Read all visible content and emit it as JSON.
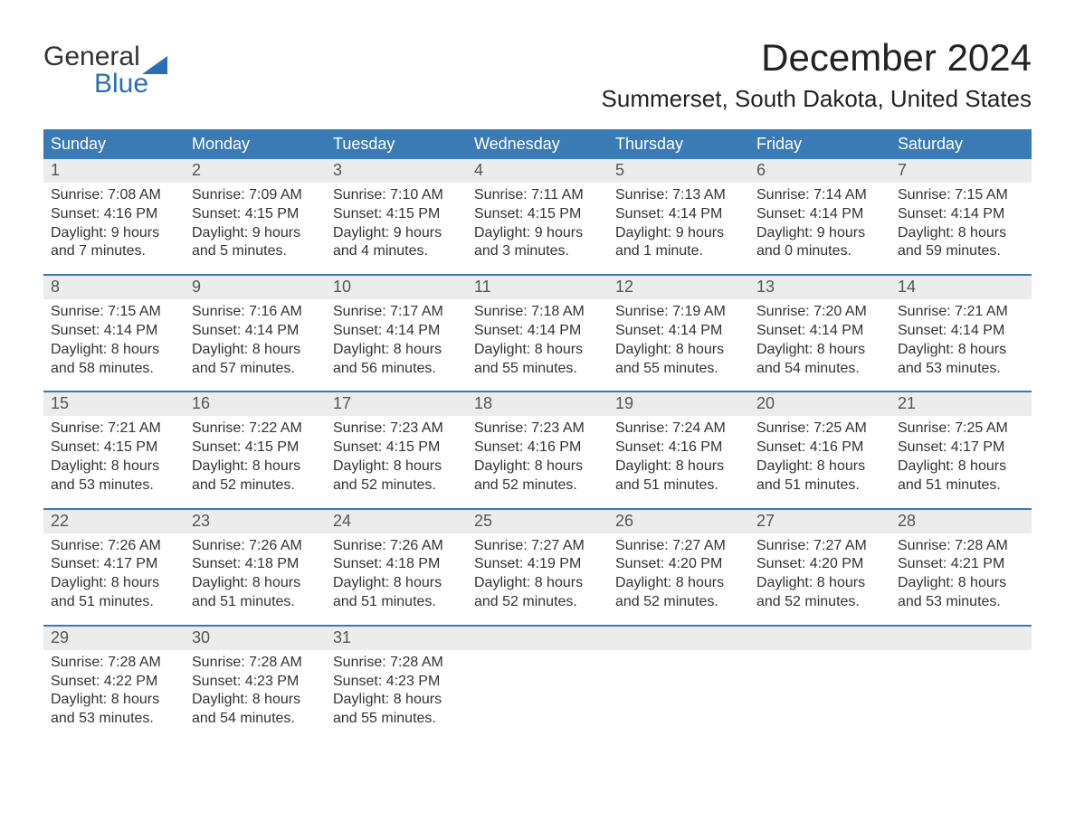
{
  "logo": {
    "word1": "General",
    "word2": "Blue"
  },
  "title": "December 2024",
  "location": "Summerset, South Dakota, United States",
  "colors": {
    "header_bg": "#3a7ab5",
    "header_text": "#ffffff",
    "daynum_bg": "#ececec",
    "daynum_text": "#555555",
    "body_text": "#333333",
    "week_border": "#3a7ab5",
    "logo_accent": "#2a6fb5"
  },
  "typography": {
    "title_fontsize": 42,
    "location_fontsize": 26,
    "header_fontsize": 18,
    "body_fontsize": 16
  },
  "day_headers": [
    "Sunday",
    "Monday",
    "Tuesday",
    "Wednesday",
    "Thursday",
    "Friday",
    "Saturday"
  ],
  "weeks": [
    [
      {
        "n": "1",
        "sr": "Sunrise: 7:08 AM",
        "ss": "Sunset: 4:16 PM",
        "d1": "Daylight: 9 hours",
        "d2": "and 7 minutes."
      },
      {
        "n": "2",
        "sr": "Sunrise: 7:09 AM",
        "ss": "Sunset: 4:15 PM",
        "d1": "Daylight: 9 hours",
        "d2": "and 5 minutes."
      },
      {
        "n": "3",
        "sr": "Sunrise: 7:10 AM",
        "ss": "Sunset: 4:15 PM",
        "d1": "Daylight: 9 hours",
        "d2": "and 4 minutes."
      },
      {
        "n": "4",
        "sr": "Sunrise: 7:11 AM",
        "ss": "Sunset: 4:15 PM",
        "d1": "Daylight: 9 hours",
        "d2": "and 3 minutes."
      },
      {
        "n": "5",
        "sr": "Sunrise: 7:13 AM",
        "ss": "Sunset: 4:14 PM",
        "d1": "Daylight: 9 hours",
        "d2": "and 1 minute."
      },
      {
        "n": "6",
        "sr": "Sunrise: 7:14 AM",
        "ss": "Sunset: 4:14 PM",
        "d1": "Daylight: 9 hours",
        "d2": "and 0 minutes."
      },
      {
        "n": "7",
        "sr": "Sunrise: 7:15 AM",
        "ss": "Sunset: 4:14 PM",
        "d1": "Daylight: 8 hours",
        "d2": "and 59 minutes."
      }
    ],
    [
      {
        "n": "8",
        "sr": "Sunrise: 7:15 AM",
        "ss": "Sunset: 4:14 PM",
        "d1": "Daylight: 8 hours",
        "d2": "and 58 minutes."
      },
      {
        "n": "9",
        "sr": "Sunrise: 7:16 AM",
        "ss": "Sunset: 4:14 PM",
        "d1": "Daylight: 8 hours",
        "d2": "and 57 minutes."
      },
      {
        "n": "10",
        "sr": "Sunrise: 7:17 AM",
        "ss": "Sunset: 4:14 PM",
        "d1": "Daylight: 8 hours",
        "d2": "and 56 minutes."
      },
      {
        "n": "11",
        "sr": "Sunrise: 7:18 AM",
        "ss": "Sunset: 4:14 PM",
        "d1": "Daylight: 8 hours",
        "d2": "and 55 minutes."
      },
      {
        "n": "12",
        "sr": "Sunrise: 7:19 AM",
        "ss": "Sunset: 4:14 PM",
        "d1": "Daylight: 8 hours",
        "d2": "and 55 minutes."
      },
      {
        "n": "13",
        "sr": "Sunrise: 7:20 AM",
        "ss": "Sunset: 4:14 PM",
        "d1": "Daylight: 8 hours",
        "d2": "and 54 minutes."
      },
      {
        "n": "14",
        "sr": "Sunrise: 7:21 AM",
        "ss": "Sunset: 4:14 PM",
        "d1": "Daylight: 8 hours",
        "d2": "and 53 minutes."
      }
    ],
    [
      {
        "n": "15",
        "sr": "Sunrise: 7:21 AM",
        "ss": "Sunset: 4:15 PM",
        "d1": "Daylight: 8 hours",
        "d2": "and 53 minutes."
      },
      {
        "n": "16",
        "sr": "Sunrise: 7:22 AM",
        "ss": "Sunset: 4:15 PM",
        "d1": "Daylight: 8 hours",
        "d2": "and 52 minutes."
      },
      {
        "n": "17",
        "sr": "Sunrise: 7:23 AM",
        "ss": "Sunset: 4:15 PM",
        "d1": "Daylight: 8 hours",
        "d2": "and 52 minutes."
      },
      {
        "n": "18",
        "sr": "Sunrise: 7:23 AM",
        "ss": "Sunset: 4:16 PM",
        "d1": "Daylight: 8 hours",
        "d2": "and 52 minutes."
      },
      {
        "n": "19",
        "sr": "Sunrise: 7:24 AM",
        "ss": "Sunset: 4:16 PM",
        "d1": "Daylight: 8 hours",
        "d2": "and 51 minutes."
      },
      {
        "n": "20",
        "sr": "Sunrise: 7:25 AM",
        "ss": "Sunset: 4:16 PM",
        "d1": "Daylight: 8 hours",
        "d2": "and 51 minutes."
      },
      {
        "n": "21",
        "sr": "Sunrise: 7:25 AM",
        "ss": "Sunset: 4:17 PM",
        "d1": "Daylight: 8 hours",
        "d2": "and 51 minutes."
      }
    ],
    [
      {
        "n": "22",
        "sr": "Sunrise: 7:26 AM",
        "ss": "Sunset: 4:17 PM",
        "d1": "Daylight: 8 hours",
        "d2": "and 51 minutes."
      },
      {
        "n": "23",
        "sr": "Sunrise: 7:26 AM",
        "ss": "Sunset: 4:18 PM",
        "d1": "Daylight: 8 hours",
        "d2": "and 51 minutes."
      },
      {
        "n": "24",
        "sr": "Sunrise: 7:26 AM",
        "ss": "Sunset: 4:18 PM",
        "d1": "Daylight: 8 hours",
        "d2": "and 51 minutes."
      },
      {
        "n": "25",
        "sr": "Sunrise: 7:27 AM",
        "ss": "Sunset: 4:19 PM",
        "d1": "Daylight: 8 hours",
        "d2": "and 52 minutes."
      },
      {
        "n": "26",
        "sr": "Sunrise: 7:27 AM",
        "ss": "Sunset: 4:20 PM",
        "d1": "Daylight: 8 hours",
        "d2": "and 52 minutes."
      },
      {
        "n": "27",
        "sr": "Sunrise: 7:27 AM",
        "ss": "Sunset: 4:20 PM",
        "d1": "Daylight: 8 hours",
        "d2": "and 52 minutes."
      },
      {
        "n": "28",
        "sr": "Sunrise: 7:28 AM",
        "ss": "Sunset: 4:21 PM",
        "d1": "Daylight: 8 hours",
        "d2": "and 53 minutes."
      }
    ],
    [
      {
        "n": "29",
        "sr": "Sunrise: 7:28 AM",
        "ss": "Sunset: 4:22 PM",
        "d1": "Daylight: 8 hours",
        "d2": "and 53 minutes."
      },
      {
        "n": "30",
        "sr": "Sunrise: 7:28 AM",
        "ss": "Sunset: 4:23 PM",
        "d1": "Daylight: 8 hours",
        "d2": "and 54 minutes."
      },
      {
        "n": "31",
        "sr": "Sunrise: 7:28 AM",
        "ss": "Sunset: 4:23 PM",
        "d1": "Daylight: 8 hours",
        "d2": "and 55 minutes."
      },
      {
        "blank": true
      },
      {
        "blank": true
      },
      {
        "blank": true
      },
      {
        "blank": true
      }
    ]
  ]
}
